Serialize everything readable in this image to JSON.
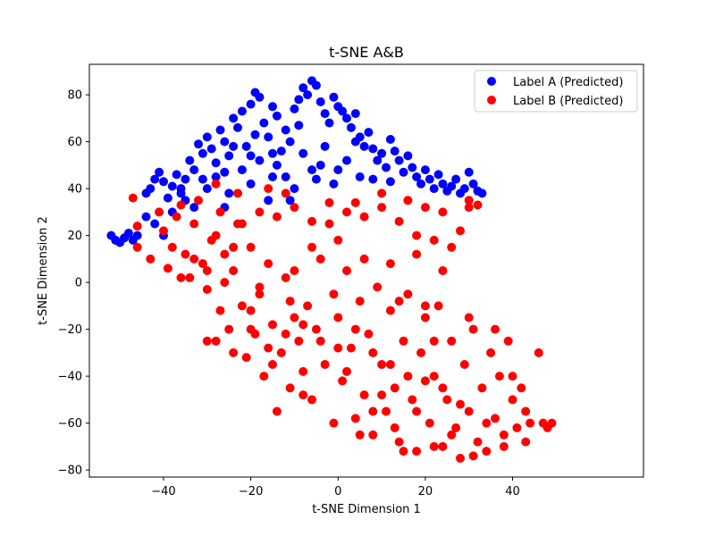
{
  "chart_data": {
    "type": "scatter",
    "title": "t-SNE A&B",
    "xlabel": "t-SNE Dimension 1",
    "ylabel": "t-SNE Dimension 2",
    "xlim": [
      -57,
      70
    ],
    "ylim": [
      -83,
      93
    ],
    "xticks": [
      -40,
      -20,
      0,
      20,
      40
    ],
    "yticks": [
      -80,
      -60,
      -40,
      -20,
      0,
      20,
      40,
      60,
      80
    ],
    "grid": false,
    "legend_position": "top-right",
    "series": [
      {
        "name": "Label A (Predicted)",
        "color": "#0000ff",
        "points": [
          [
            -52,
            20
          ],
          [
            -51,
            18
          ],
          [
            -50,
            17
          ],
          [
            -49,
            19
          ],
          [
            -48,
            21
          ],
          [
            -47,
            18
          ],
          [
            -46,
            20
          ],
          [
            -44,
            38
          ],
          [
            -43,
            40
          ],
          [
            -42,
            44
          ],
          [
            -41,
            47
          ],
          [
            -40,
            43
          ],
          [
            -39,
            36
          ],
          [
            -38,
            41
          ],
          [
            -37,
            46
          ],
          [
            -36,
            40
          ],
          [
            -35,
            44
          ],
          [
            -34,
            52
          ],
          [
            -33,
            48
          ],
          [
            -32,
            59
          ],
          [
            -31,
            55
          ],
          [
            -30,
            62
          ],
          [
            -29,
            57
          ],
          [
            -28,
            51
          ],
          [
            -27,
            65
          ],
          [
            -26,
            60
          ],
          [
            -25,
            54
          ],
          [
            -24,
            70
          ],
          [
            -23,
            66
          ],
          [
            -22,
            73
          ],
          [
            -21,
            58
          ],
          [
            -20,
            76
          ],
          [
            -19,
            81
          ],
          [
            -18,
            79
          ],
          [
            -17,
            68
          ],
          [
            -16,
            62
          ],
          [
            -15,
            75
          ],
          [
            -14,
            71
          ],
          [
            -13,
            56
          ],
          [
            -12,
            65
          ],
          [
            -11,
            60
          ],
          [
            -10,
            74
          ],
          [
            -9,
            78
          ],
          [
            -8,
            83
          ],
          [
            -7,
            80
          ],
          [
            -6,
            86
          ],
          [
            -5,
            84
          ],
          [
            -4,
            77
          ],
          [
            -3,
            72
          ],
          [
            -2,
            68
          ],
          [
            -1,
            79
          ],
          [
            0,
            75
          ],
          [
            1,
            73
          ],
          [
            2,
            70
          ],
          [
            3,
            66
          ],
          [
            4,
            72
          ],
          [
            5,
            62
          ],
          [
            6,
            58
          ],
          [
            7,
            64
          ],
          [
            8,
            57
          ],
          [
            9,
            52
          ],
          [
            10,
            55
          ],
          [
            11,
            49
          ],
          [
            12,
            61
          ],
          [
            13,
            56
          ],
          [
            14,
            52
          ],
          [
            15,
            47
          ],
          [
            16,
            54
          ],
          [
            17,
            49
          ],
          [
            18,
            45
          ],
          [
            19,
            42
          ],
          [
            20,
            48
          ],
          [
            21,
            44
          ],
          [
            22,
            40
          ],
          [
            23,
            46
          ],
          [
            24,
            42
          ],
          [
            25,
            39
          ],
          [
            26,
            41
          ],
          [
            27,
            44
          ],
          [
            28,
            38
          ],
          [
            29,
            40
          ],
          [
            30,
            47
          ],
          [
            31,
            42
          ],
          [
            32,
            39
          ],
          [
            33,
            38
          ],
          [
            -30,
            40
          ],
          [
            -25,
            38
          ],
          [
            -20,
            42
          ],
          [
            -15,
            45
          ],
          [
            -10,
            40
          ],
          [
            -5,
            44
          ],
          [
            0,
            48
          ],
          [
            5,
            45
          ],
          [
            -22,
            48
          ],
          [
            -18,
            52
          ],
          [
            -14,
            50
          ],
          [
            -8,
            55
          ],
          [
            -4,
            50
          ],
          [
            2,
            52
          ],
          [
            -12,
            45
          ],
          [
            -6,
            48
          ],
          [
            -28,
            45
          ],
          [
            -35,
            35
          ],
          [
            -42,
            25
          ],
          [
            -40,
            20
          ],
          [
            -38,
            30
          ],
          [
            -33,
            32
          ],
          [
            -26,
            32
          ],
          [
            -16,
            35
          ],
          [
            -11,
            35
          ],
          [
            -1,
            42
          ],
          [
            8,
            44
          ],
          [
            12,
            43
          ],
          [
            -19,
            63
          ],
          [
            -24,
            58
          ],
          [
            -9,
            67
          ],
          [
            -3,
            58
          ],
          [
            4,
            60
          ],
          [
            -15,
            55
          ],
          [
            -20,
            54
          ],
          [
            -26,
            47
          ],
          [
            -31,
            44
          ],
          [
            -36,
            38
          ],
          [
            -44,
            28
          ]
        ]
      },
      {
        "name": "Label B (Predicted)",
        "color": "#ff0000",
        "points": [
          [
            -47,
            36
          ],
          [
            -46,
            24
          ],
          [
            -46,
            15
          ],
          [
            -43,
            10
          ],
          [
            -41,
            30
          ],
          [
            -40,
            22
          ],
          [
            -39,
            6
          ],
          [
            -38,
            15
          ],
          [
            -37,
            28
          ],
          [
            -36,
            33
          ],
          [
            -35,
            12
          ],
          [
            -34,
            2
          ],
          [
            -33,
            25
          ],
          [
            -32,
            35
          ],
          [
            -31,
            8
          ],
          [
            -30,
            -3
          ],
          [
            -29,
            18
          ],
          [
            -28,
            -25
          ],
          [
            -27,
            30
          ],
          [
            -26,
            12
          ],
          [
            -25,
            -20
          ],
          [
            -24,
            5
          ],
          [
            -23,
            25
          ],
          [
            -22,
            -10
          ],
          [
            -21,
            -32
          ],
          [
            -20,
            15
          ],
          [
            -19,
            -22
          ],
          [
            -18,
            -5
          ],
          [
            -17,
            -40
          ],
          [
            -16,
            8
          ],
          [
            -15,
            -18
          ],
          [
            -14,
            -55
          ],
          [
            -13,
            -30
          ],
          [
            -12,
            2
          ],
          [
            -11,
            -45
          ],
          [
            -10,
            -15
          ],
          [
            -9,
            -25
          ],
          [
            -8,
            -38
          ],
          [
            -7,
            -10
          ],
          [
            -6,
            -50
          ],
          [
            -5,
            -20
          ],
          [
            -4,
            10
          ],
          [
            -3,
            -35
          ],
          [
            -2,
            25
          ],
          [
            -1,
            -60
          ],
          [
            0,
            -15
          ],
          [
            1,
            -42
          ],
          [
            2,
            5
          ],
          [
            3,
            -28
          ],
          [
            4,
            -58
          ],
          [
            5,
            -8
          ],
          [
            6,
            -48
          ],
          [
            7,
            -22
          ],
          [
            8,
            -65
          ],
          [
            9,
            -2
          ],
          [
            10,
            -35
          ],
          [
            11,
            -55
          ],
          [
            12,
            -12
          ],
          [
            13,
            -45
          ],
          [
            14,
            -68
          ],
          [
            15,
            -25
          ],
          [
            16,
            -5
          ],
          [
            17,
            -50
          ],
          [
            18,
            -72
          ],
          [
            19,
            -30
          ],
          [
            20,
            -15
          ],
          [
            21,
            -60
          ],
          [
            22,
            -40
          ],
          [
            23,
            -10
          ],
          [
            24,
            -70
          ],
          [
            25,
            -50
          ],
          [
            26,
            -25
          ],
          [
            27,
            -62
          ],
          [
            28,
            -75
          ],
          [
            29,
            -35
          ],
          [
            30,
            -55
          ],
          [
            31,
            -20
          ],
          [
            32,
            -68
          ],
          [
            33,
            -45
          ],
          [
            34,
            -72
          ],
          [
            35,
            -30
          ],
          [
            36,
            -58
          ],
          [
            37,
            -40
          ],
          [
            38,
            -65
          ],
          [
            39,
            -25
          ],
          [
            40,
            -50
          ],
          [
            41,
            -62
          ],
          [
            42,
            -45
          ],
          [
            43,
            -55
          ],
          [
            44,
            -60
          ],
          [
            46,
            -30
          ],
          [
            47,
            -60
          ],
          [
            48,
            -62
          ],
          [
            49,
            -60
          ],
          [
            -30,
            -25
          ],
          [
            -27,
            -12
          ],
          [
            -24,
            -30
          ],
          [
            -20,
            -20
          ],
          [
            -16,
            -28
          ],
          [
            -12,
            -22
          ],
          [
            -8,
            -18
          ],
          [
            -4,
            -25
          ],
          [
            0,
            -28
          ],
          [
            4,
            -20
          ],
          [
            8,
            -30
          ],
          [
            12,
            -35
          ],
          [
            16,
            -40
          ],
          [
            20,
            -42
          ],
          [
            24,
            -45
          ],
          [
            28,
            -52
          ],
          [
            -22,
            25
          ],
          [
            -18,
            30
          ],
          [
            -14,
            28
          ],
          [
            -10,
            32
          ],
          [
            -6,
            26
          ],
          [
            -2,
            34
          ],
          [
            2,
            30
          ],
          [
            6,
            28
          ],
          [
            10,
            32
          ],
          [
            14,
            26
          ],
          [
            18,
            20
          ],
          [
            22,
            18
          ],
          [
            26,
            15
          ],
          [
            30,
            32
          ],
          [
            -26,
            0
          ],
          [
            -18,
            -2
          ],
          [
            -10,
            5
          ],
          [
            -6,
            15
          ],
          [
            0,
            18
          ],
          [
            6,
            10
          ],
          [
            12,
            8
          ],
          [
            18,
            12
          ],
          [
            24,
            5
          ],
          [
            28,
            22
          ],
          [
            -15,
            -35
          ],
          [
            -8,
            -48
          ],
          [
            2,
            -38
          ],
          [
            10,
            -48
          ],
          [
            18,
            -55
          ],
          [
            26,
            -65
          ],
          [
            34,
            -60
          ],
          [
            40,
            -40
          ],
          [
            20,
            -10
          ],
          [
            30,
            -15
          ],
          [
            36,
            -20
          ],
          [
            22,
            -25
          ],
          [
            14,
            -8
          ],
          [
            -1,
            -5
          ],
          [
            -11,
            -8
          ],
          [
            -20,
            -12
          ],
          [
            5,
            -65
          ],
          [
            13,
            -62
          ],
          [
            22,
            -70
          ],
          [
            31,
            -74
          ],
          [
            38,
            -70
          ],
          [
            43,
            -68
          ],
          [
            15,
            -72
          ],
          [
            8,
            -55
          ],
          [
            -28,
            20
          ],
          [
            -33,
            10
          ],
          [
            -36,
            2
          ],
          [
            -30,
            5
          ],
          [
            -24,
            15
          ],
          [
            16,
            35
          ],
          [
            20,
            32
          ],
          [
            24,
            30
          ],
          [
            30,
            35
          ],
          [
            32,
            33
          ],
          [
            10,
            38
          ],
          [
            4,
            34
          ],
          [
            -16,
            40
          ],
          [
            -12,
            38
          ],
          [
            -28,
            42
          ],
          [
            -23,
            38
          ]
        ]
      }
    ]
  }
}
